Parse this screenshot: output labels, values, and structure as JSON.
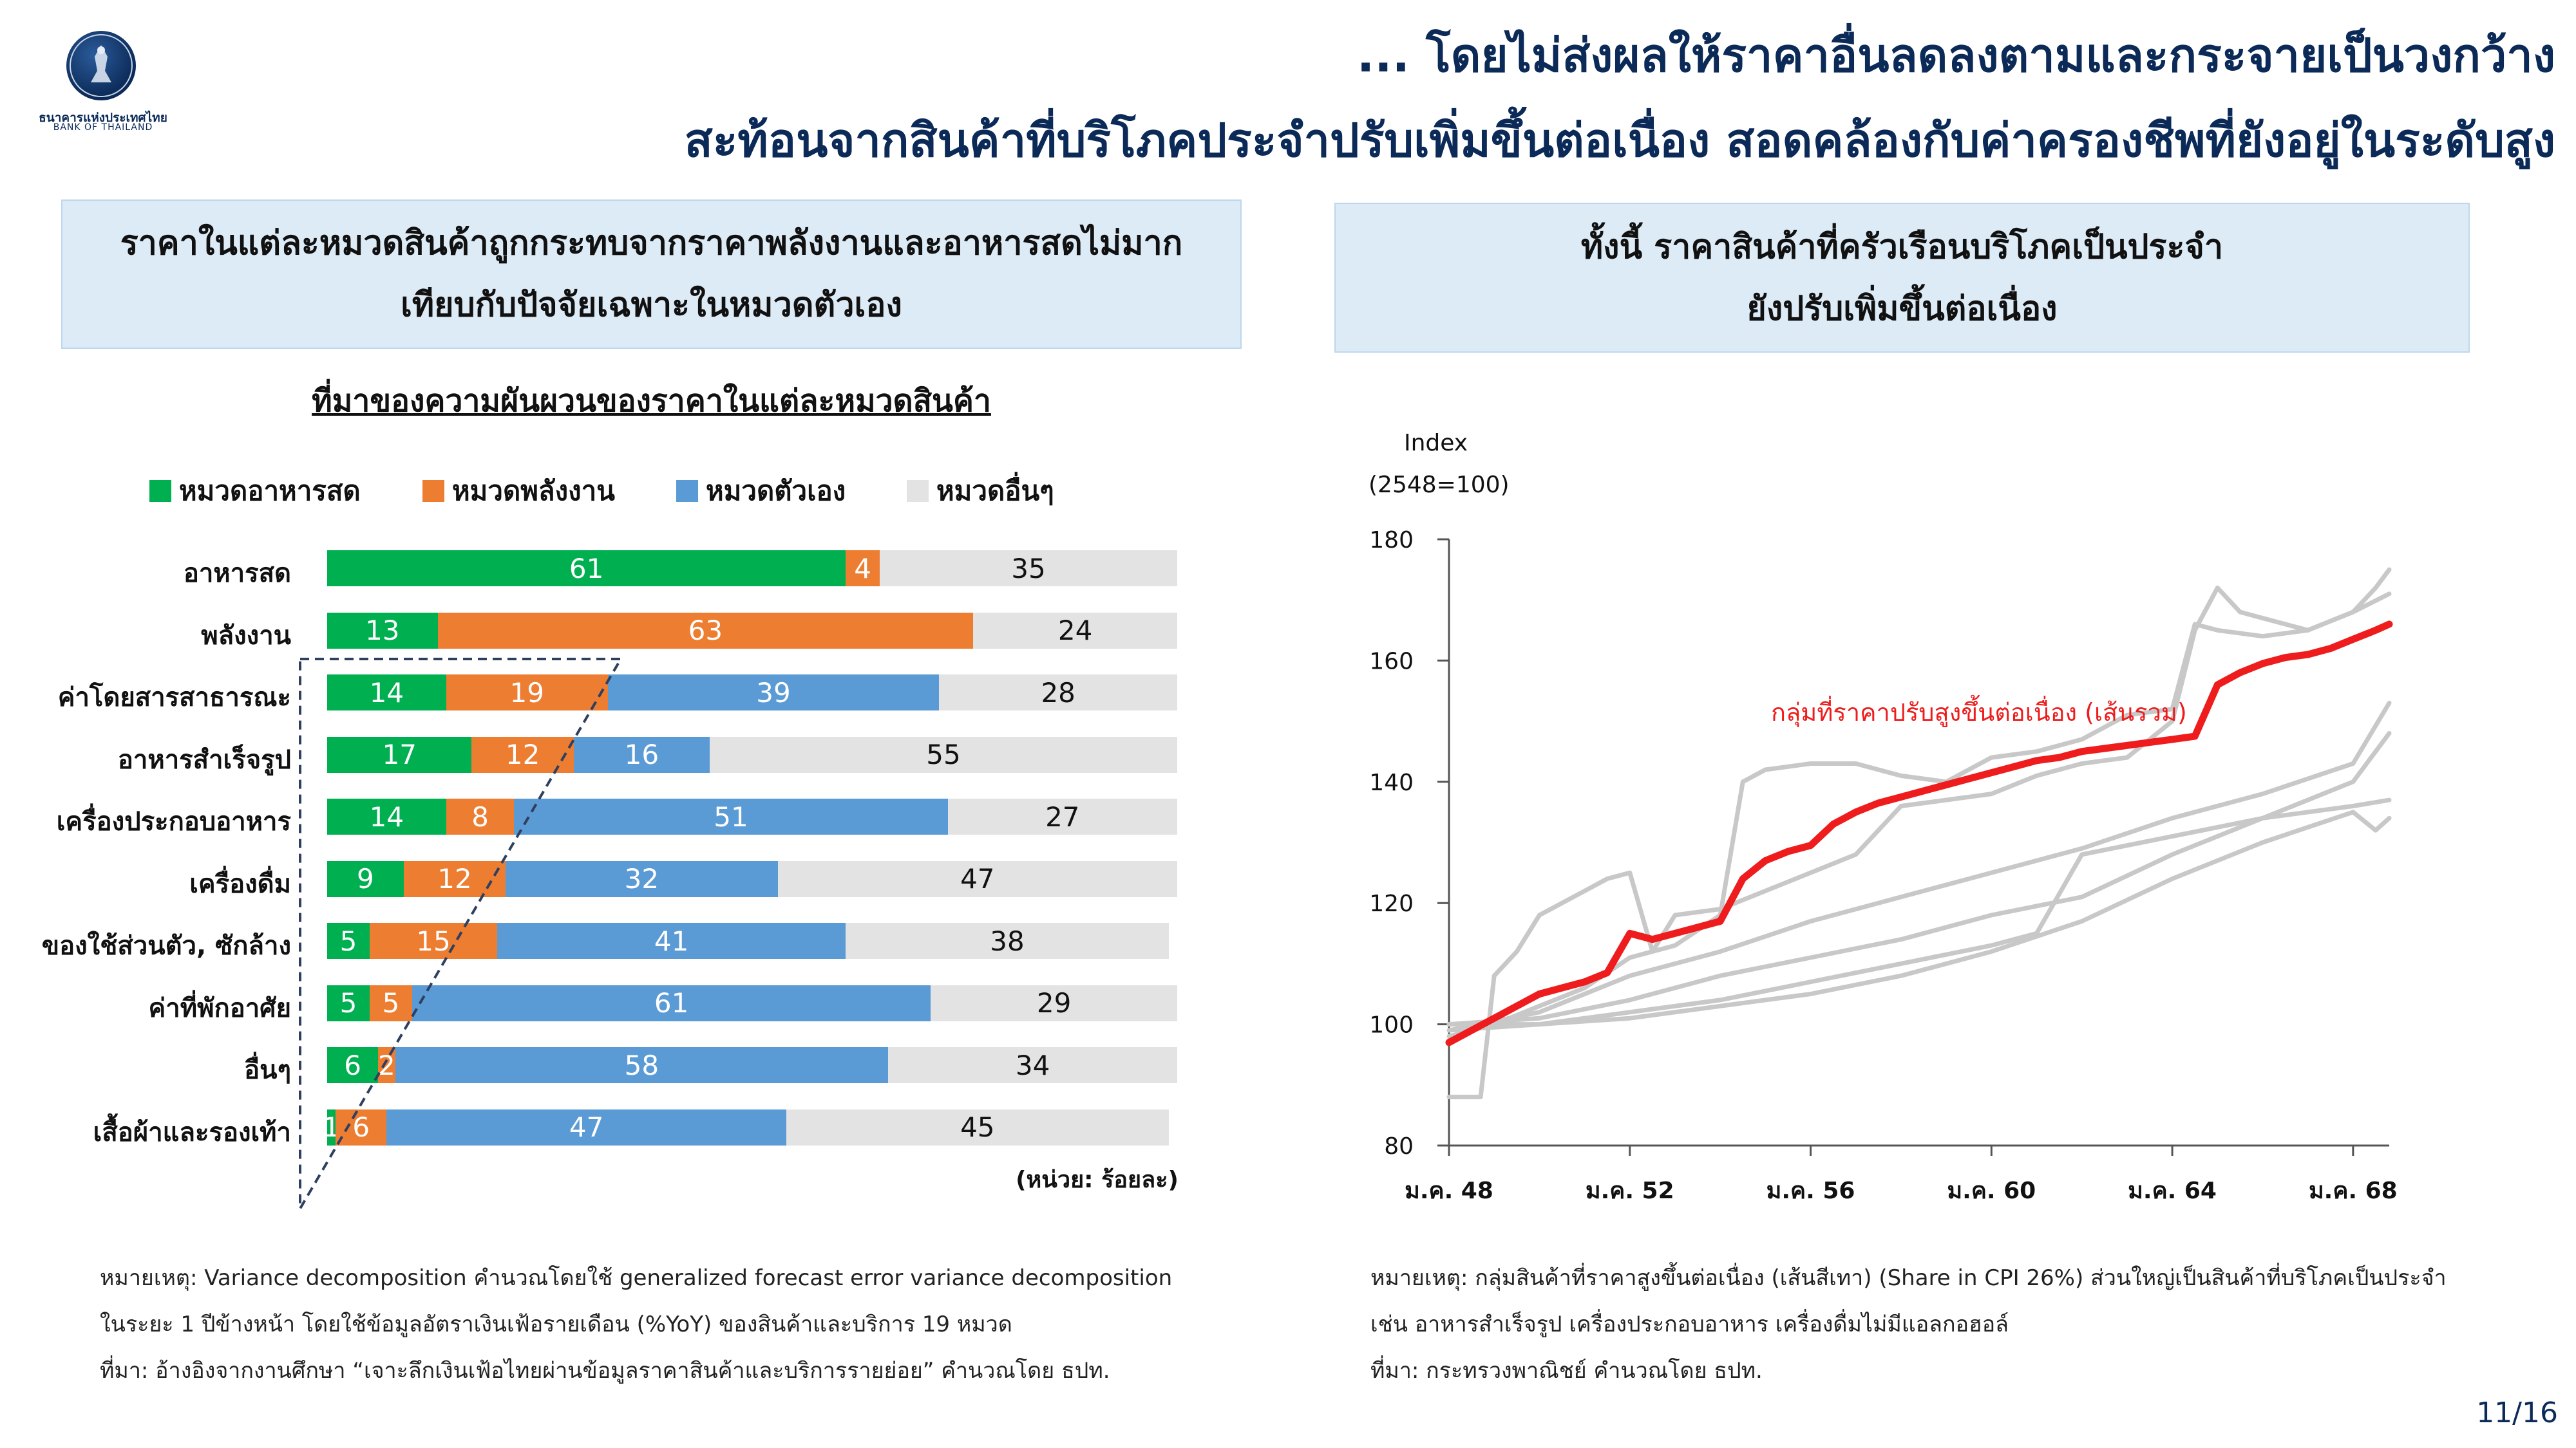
{
  "header": {
    "bank_name_th": "ธนาคารแห่งประเทศไทย",
    "bank_name_en": "BANK OF THAILAND",
    "title_line1": "... โดยไม่ส่งผลให้ราคาอื่นลดลงตามและกระจายเป็นวงกว้าง",
    "title_line2": "สะท้อนจากสินค้าที่บริโภคประจำปรับเพิ่มขึ้นต่อเนื่อง สอดคล้องกับค่าครองชีพที่ยังอยู่ในระดับสูง"
  },
  "left_panel": {
    "box_line1": "ราคาในแต่ละหมวดสินค้าถูกกระทบจากราคาพลังงานและอาหารสดไม่มาก",
    "box_line2": "เทียบกับปัจจัยเฉพาะในหมวดตัวเอง",
    "chart_title": "ที่มาของความผันผวนของราคาในแต่ละหมวดสินค้า",
    "unit_note": "(หน่วย: ร้อยละ)",
    "notes": [
      "หมายเหตุ: Variance decomposition คำนวณโดยใช้ generalized forecast error variance decomposition",
      "ในระยะ 1 ปีข้างหน้า โดยใช้ข้อมูลอัตราเงินเฟ้อรายเดือน (%YoY) ของสินค้าและบริการ 19 หมวด",
      "ที่มา:  อ้างอิงจากงานศึกษา “เจาะลึกเงินเฟ้อไทยผ่านข้อมูลราคาสินค้าและบริการรายย่อย” คำนวณโดย ธปท."
    ]
  },
  "right_panel": {
    "box_line1": "ทั้งนี้ ราคาสินค้าที่ครัวเรือนบริโภคเป็นประจำ",
    "box_line2": "ยังปรับเพิ่มขึ้นต่อเนื่อง",
    "notes": [
      "หมายเหตุ: กลุ่มสินค้าที่ราคาสูงขึ้นต่อเนื่อง (เส้นสีเทา) (Share in CPI 26%) ส่วนใหญ่เป็นสินค้าที่บริโภคเป็นประจำ",
      "เช่น อาหารสำเร็จรูป เครื่องประกอบอาหาร เครื่องดื่มไม่มีแอลกอฮอล์",
      "ที่มา: กระทรวงพาณิชย์ คำนวณโดย ธปท."
    ]
  },
  "page_number": "11/16",
  "colors": {
    "food": "#00b050",
    "energy": "#ed7d31",
    "own": "#5b9bd5",
    "other": "#e3e3e3",
    "total_line": "#ee1c1c",
    "gray_line": "#c8c8c8"
  },
  "chart_data": [
    {
      "type": "bar",
      "stacked": true,
      "orientation": "horizontal",
      "title": "ที่มาของความผันผวนของราคาในแต่ละหมวดสินค้า",
      "unit": "(หน่วย: ร้อยละ)",
      "categories": [
        "อาหารสด",
        "พลังงาน",
        "ค่าโดยสารสาธารณะ",
        "อาหารสำเร็จรูป",
        "เครื่องประกอบอาหาร",
        "เครื่องดื่ม",
        "ของใช้ส่วนตัว, ซักล้าง",
        "ค่าที่พักอาศัย",
        "อื่นๆ",
        "เสื้อผ้าและรองเท้า"
      ],
      "series": [
        {
          "name": "หมวดอาหารสด",
          "values": [
            61,
            13,
            14,
            17,
            14,
            9,
            5,
            5,
            6,
            1
          ]
        },
        {
          "name": "หมวดพลังงาน",
          "values": [
            4,
            63,
            19,
            12,
            8,
            12,
            15,
            5,
            2,
            6
          ]
        },
        {
          "name": "หมวดตัวเอง",
          "values": [
            0,
            0,
            39,
            16,
            51,
            32,
            41,
            61,
            58,
            47
          ]
        },
        {
          "name": "หมวดอื่นๆ",
          "values": [
            35,
            24,
            28,
            55,
            27,
            47,
            38,
            29,
            34,
            45
          ]
        }
      ],
      "xlim": [
        0,
        100
      ]
    },
    {
      "type": "line",
      "ylabel": "Index",
      "ylabel2": "(2548=100)",
      "ylim": [
        80,
        180
      ],
      "yticks": [
        80,
        100,
        120,
        140,
        160,
        180
      ],
      "x_ticks": [
        "ม.ค. 48",
        "ม.ค. 52",
        "ม.ค. 56",
        "ม.ค. 60",
        "ม.ค. 64",
        "ม.ค. 68"
      ],
      "xlim": [
        0,
        20.8
      ],
      "annotation": "กลุ่มที่ราคาปรับสูงขึ้นต่อเนื่อง (เส้นรวม)",
      "series": [
        {
          "name": "กลุ่มที่ราคาปรับสูงขึ้นต่อเนื่อง (เส้นรวม)",
          "highlight": true,
          "x": [
            0,
            0.5,
            1,
            1.5,
            2,
            2.5,
            3,
            3.5,
            4,
            4.5,
            5,
            5.5,
            6,
            6.5,
            7,
            7.5,
            8,
            8.5,
            9,
            9.5,
            10,
            10.5,
            11,
            11.5,
            12,
            12.5,
            13,
            13.5,
            14,
            14.5,
            15,
            15.5,
            16,
            16.5,
            17,
            17.5,
            18,
            18.5,
            19,
            19.5,
            20,
            20.5,
            20.8
          ],
          "values": [
            97,
            99,
            101,
            103,
            105,
            106,
            107,
            108.5,
            115,
            114,
            115,
            116,
            117,
            124,
            127,
            128.5,
            129.5,
            133,
            135,
            136.5,
            137.5,
            138.5,
            139.5,
            140.5,
            141.5,
            142.5,
            143.5,
            144,
            145,
            145.5,
            146,
            146.5,
            147,
            147.5,
            156,
            158,
            159.5,
            160.5,
            161,
            162,
            163.5,
            165,
            166
          ]
        },
        {
          "name": "grey-1",
          "x": [
            0,
            0.7,
            1,
            1.5,
            2,
            3,
            3.5,
            4,
            4.5,
            5,
            6,
            7,
            8,
            9,
            10,
            11,
            12,
            13,
            14,
            15,
            16,
            16.5,
            17,
            17.5,
            18,
            19,
            20,
            20.5,
            20.8
          ],
          "values": [
            88,
            88,
            108,
            112,
            118,
            122,
            124,
            125,
            112,
            118,
            119,
            122,
            125,
            128,
            136,
            137,
            138,
            141,
            143,
            144,
            150,
            165,
            172,
            168,
            167,
            165,
            168,
            172,
            175
          ]
        },
        {
          "name": "grey-2",
          "x": [
            0,
            1,
            2,
            3,
            4,
            5,
            6,
            6.5,
            7,
            8,
            9,
            10,
            11,
            12,
            13,
            14,
            15,
            16,
            16.5,
            17,
            18,
            19,
            20,
            20.8
          ],
          "values": [
            98,
            100,
            103,
            106,
            111,
            113,
            118,
            140,
            142,
            143,
            143,
            141,
            140,
            144,
            145,
            147,
            151,
            152,
            166,
            165,
            164,
            165,
            168,
            171
          ]
        },
        {
          "name": "grey-3",
          "x": [
            0,
            2,
            4,
            6,
            8,
            10,
            12,
            14,
            16,
            18,
            20,
            20.8
          ],
          "values": [
            99,
            102,
            108,
            112,
            117,
            121,
            125,
            129,
            134,
            138,
            143,
            153
          ]
        },
        {
          "name": "grey-4",
          "x": [
            0,
            2,
            4,
            6,
            8,
            10,
            12,
            14,
            16,
            18,
            20,
            20.8
          ],
          "values": [
            100,
            101,
            104,
            108,
            111,
            114,
            118,
            121,
            128,
            134,
            140,
            148
          ]
        },
        {
          "name": "grey-5",
          "x": [
            0,
            2,
            4,
            6,
            8,
            10,
            12,
            13,
            14,
            16,
            18,
            20,
            20.8
          ],
          "values": [
            99,
            100,
            102,
            104,
            107,
            110,
            113,
            115,
            128,
            131,
            134,
            136,
            137
          ]
        },
        {
          "name": "grey-6",
          "x": [
            0,
            2,
            4,
            6,
            8,
            10,
            12,
            14,
            16,
            18,
            20,
            20.5,
            20.8
          ],
          "values": [
            100,
            100,
            101,
            103,
            105,
            108,
            112,
            117,
            124,
            130,
            135,
            132,
            134
          ]
        }
      ]
    }
  ]
}
